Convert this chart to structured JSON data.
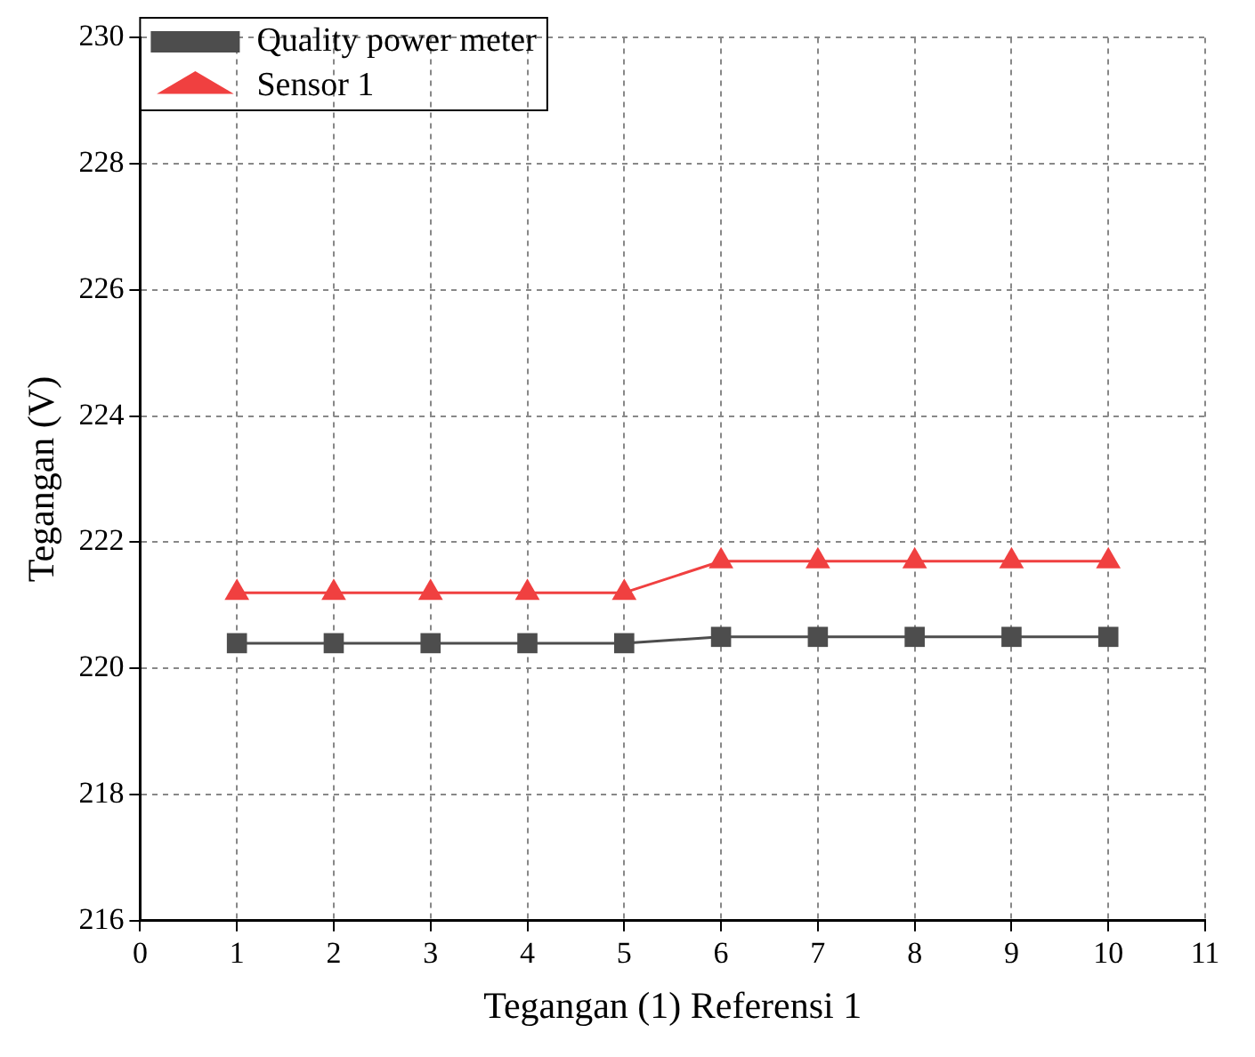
{
  "chart_data": {
    "type": "line",
    "xlabel": "Tegangan (1) Referensi 1",
    "ylabel": "Tegangan (V)",
    "x": [
      1,
      2,
      3,
      4,
      5,
      6,
      7,
      8,
      9,
      10
    ],
    "series": [
      {
        "name": "Quality power meter",
        "color": "#4d4d4d",
        "marker": "square",
        "values": [
          220.4,
          220.4,
          220.4,
          220.4,
          220.4,
          220.5,
          220.5,
          220.5,
          220.5,
          220.5
        ]
      },
      {
        "name": "Sensor 1",
        "color": "#f04040",
        "marker": "triangle",
        "values": [
          221.2,
          221.2,
          221.2,
          221.2,
          221.2,
          221.7,
          221.7,
          221.7,
          221.7,
          221.7
        ]
      }
    ],
    "xlim": [
      0,
      11
    ],
    "xticks": [
      0,
      1,
      2,
      3,
      4,
      5,
      6,
      7,
      8,
      9,
      10,
      11
    ],
    "ylim": [
      216,
      230
    ],
    "yticks": [
      216,
      218,
      220,
      222,
      224,
      226,
      228,
      230
    ],
    "grid": true,
    "legend": "top left",
    "line_style": "solid"
  }
}
